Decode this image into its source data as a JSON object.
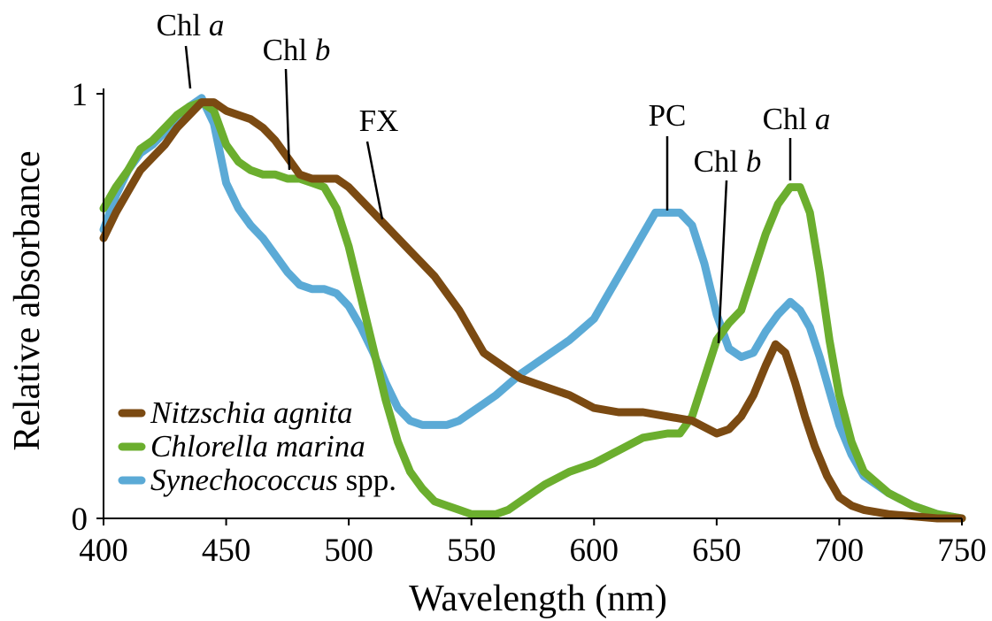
{
  "chart_data": {
    "type": "line",
    "title": "",
    "xlabel": "Wavelength (nm)",
    "ylabel": "Relative absorbance",
    "xlim": [
      400,
      750
    ],
    "ylim": [
      0,
      1
    ],
    "xticks": [
      "400",
      "450",
      "500",
      "550",
      "600",
      "650",
      "700",
      "750"
    ],
    "yticks": [
      "0",
      "1"
    ],
    "grid": false,
    "legend_position": "bottom-left",
    "series": [
      {
        "name": "Nitzschia agnita",
        "name_italic": "Nitzschia agnita",
        "name_suffix": "",
        "color": "#7B4A12",
        "x": [
          400,
          405,
          410,
          415,
          420,
          425,
          430,
          435,
          440,
          445,
          450,
          455,
          460,
          465,
          470,
          475,
          480,
          485,
          490,
          495,
          500,
          505,
          510,
          515,
          520,
          525,
          530,
          535,
          540,
          545,
          550,
          555,
          560,
          570,
          580,
          590,
          600,
          610,
          620,
          630,
          640,
          650,
          655,
          660,
          665,
          670,
          674,
          678,
          682,
          686,
          690,
          695,
          700,
          705,
          710,
          720,
          730,
          740,
          750
        ],
        "values": [
          0.66,
          0.72,
          0.77,
          0.82,
          0.85,
          0.88,
          0.92,
          0.95,
          0.98,
          0.98,
          0.96,
          0.95,
          0.94,
          0.92,
          0.89,
          0.85,
          0.81,
          0.8,
          0.8,
          0.8,
          0.78,
          0.75,
          0.72,
          0.69,
          0.66,
          0.63,
          0.6,
          0.57,
          0.53,
          0.49,
          0.44,
          0.39,
          0.37,
          0.33,
          0.31,
          0.29,
          0.26,
          0.25,
          0.25,
          0.24,
          0.23,
          0.2,
          0.21,
          0.24,
          0.29,
          0.36,
          0.41,
          0.39,
          0.32,
          0.24,
          0.17,
          0.1,
          0.05,
          0.03,
          0.02,
          0.01,
          0.005,
          0.0,
          0.0
        ]
      },
      {
        "name": "Chlorella marina",
        "name_italic": "Chlorella marina",
        "name_suffix": "",
        "color": "#6BAE2E",
        "x": [
          400,
          405,
          410,
          415,
          420,
          425,
          430,
          435,
          440,
          445,
          450,
          455,
          460,
          465,
          470,
          475,
          480,
          485,
          490,
          495,
          500,
          505,
          510,
          515,
          520,
          525,
          530,
          535,
          540,
          545,
          550,
          555,
          560,
          565,
          570,
          580,
          590,
          600,
          610,
          620,
          630,
          635,
          640,
          645,
          650,
          655,
          660,
          665,
          670,
          675,
          680,
          684,
          688,
          692,
          696,
          700,
          705,
          710,
          720,
          730,
          740,
          750
        ],
        "values": [
          0.73,
          0.78,
          0.82,
          0.87,
          0.89,
          0.92,
          0.95,
          0.97,
          0.98,
          0.96,
          0.88,
          0.84,
          0.82,
          0.81,
          0.81,
          0.8,
          0.8,
          0.79,
          0.78,
          0.73,
          0.64,
          0.52,
          0.4,
          0.28,
          0.18,
          0.11,
          0.07,
          0.04,
          0.03,
          0.02,
          0.01,
          0.01,
          0.01,
          0.02,
          0.04,
          0.08,
          0.11,
          0.13,
          0.16,
          0.19,
          0.2,
          0.2,
          0.24,
          0.33,
          0.42,
          0.46,
          0.49,
          0.58,
          0.67,
          0.74,
          0.78,
          0.78,
          0.72,
          0.58,
          0.42,
          0.29,
          0.18,
          0.11,
          0.06,
          0.03,
          0.01,
          0.0
        ]
      },
      {
        "name": "Synechococcus spp.",
        "name_italic": "Synechococcus",
        "name_suffix": " spp.",
        "color": "#5BAAD6",
        "x": [
          400,
          405,
          410,
          415,
          420,
          425,
          430,
          435,
          440,
          445,
          450,
          455,
          460,
          465,
          470,
          475,
          480,
          485,
          490,
          495,
          500,
          505,
          510,
          515,
          520,
          525,
          530,
          535,
          540,
          545,
          550,
          555,
          560,
          570,
          580,
          590,
          600,
          605,
          610,
          615,
          620,
          625,
          630,
          635,
          640,
          645,
          650,
          655,
          660,
          665,
          670,
          675,
          680,
          684,
          688,
          692,
          696,
          700,
          705,
          710,
          720,
          730,
          740,
          750
        ],
        "values": [
          0.68,
          0.76,
          0.82,
          0.86,
          0.88,
          0.91,
          0.94,
          0.97,
          0.99,
          0.93,
          0.79,
          0.73,
          0.69,
          0.66,
          0.62,
          0.58,
          0.55,
          0.54,
          0.54,
          0.53,
          0.5,
          0.45,
          0.39,
          0.32,
          0.26,
          0.23,
          0.22,
          0.22,
          0.22,
          0.23,
          0.25,
          0.27,
          0.29,
          0.34,
          0.38,
          0.42,
          0.47,
          0.52,
          0.57,
          0.62,
          0.67,
          0.72,
          0.72,
          0.72,
          0.69,
          0.6,
          0.48,
          0.4,
          0.38,
          0.39,
          0.44,
          0.48,
          0.51,
          0.49,
          0.45,
          0.38,
          0.3,
          0.22,
          0.15,
          0.1,
          0.06,
          0.03,
          0.01,
          0.0
        ]
      }
    ],
    "annotations": [
      {
        "label_main": "Chl ",
        "label_italic": "a",
        "x": 437,
        "y": 1.0
      },
      {
        "label_main": "Chl ",
        "label_italic": "b",
        "x": 476,
        "y": 0.81
      },
      {
        "label_main": "FX",
        "label_italic": "",
        "x": 513,
        "y": 0.7
      },
      {
        "label_main": "PC",
        "label_italic": "",
        "x": 630,
        "y": 0.72
      },
      {
        "label_main": "Chl ",
        "label_italic": "b",
        "x": 651,
        "y": 0.41
      },
      {
        "label_main": "Chl ",
        "label_italic": "a",
        "x": 680,
        "y": 0.8
      }
    ]
  }
}
